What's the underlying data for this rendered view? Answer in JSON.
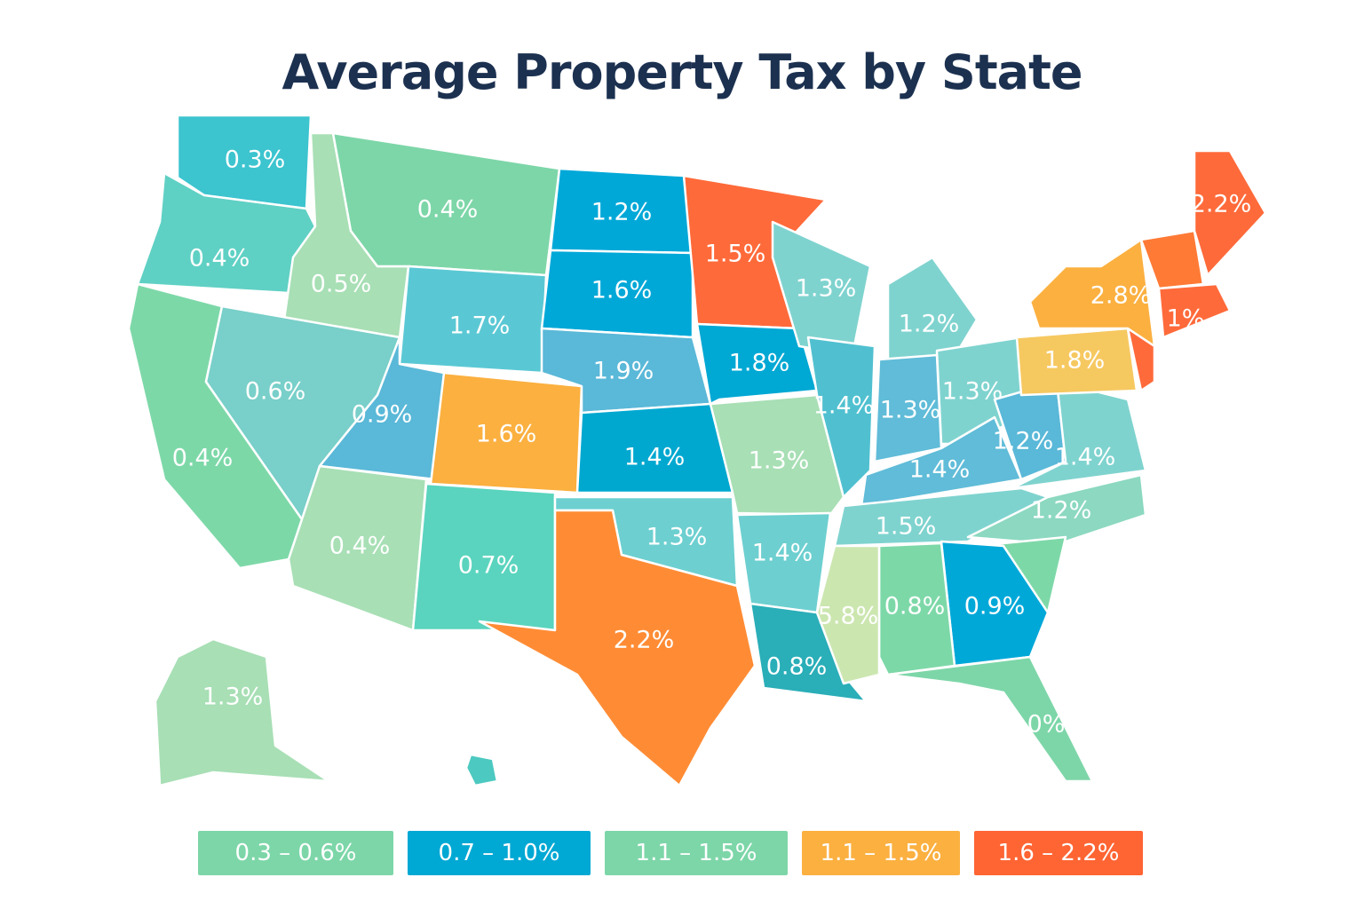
{
  "title": "Average Property Tax by State",
  "states": [
    {
      "label": "0.3%",
      "color": "#3cc4cf"
    },
    {
      "label": "0.4%",
      "color": "#5fd0c4"
    },
    {
      "label": "0.4%",
      "color": "#7dd8a8"
    },
    {
      "label": "0.5%",
      "color": "#a8dfb5"
    },
    {
      "label": "0.6%",
      "color": "#79cfc9"
    },
    {
      "label": "0.4%",
      "color": "#7dd6a8"
    },
    {
      "label": "1.7%",
      "color": "#5ac8d4"
    },
    {
      "label": "0.9%",
      "color": "#5ab8d8"
    },
    {
      "label": "0.4%",
      "color": "#a8dfb5"
    },
    {
      "label": "1.6%",
      "color": "#fbb040"
    },
    {
      "label": "0.7%",
      "color": "#5ad4be"
    },
    {
      "label": "1.2%",
      "color": "#00a8d8"
    },
    {
      "label": "1.6%",
      "color": "#00a8d8"
    },
    {
      "label": "1.9%",
      "color": "#5ab8d8"
    },
    {
      "label": "1.4%",
      "color": "#00a8d0"
    },
    {
      "label": "1.3%",
      "color": "#6dcfd0"
    },
    {
      "label": "2.2%",
      "color": "#ff8c35"
    },
    {
      "label": "1.5%",
      "color": "#ff6a3a"
    },
    {
      "label": "1.8%",
      "color": "#00a8d4"
    },
    {
      "label": "1.3%",
      "color": "#a8dfb5"
    },
    {
      "label": "1.4%",
      "color": "#6dcfd0"
    },
    {
      "label": "0.8%",
      "color": "#2aaeb8"
    },
    {
      "label": "1.3%",
      "color": "#7fd3cf"
    },
    {
      "label": "1.2%",
      "color": "#7fd3cf"
    },
    {
      "label": "1.4%",
      "color": "#50c0d0"
    },
    {
      "label": "1.3%",
      "color": "#60bcd8"
    },
    {
      "label": "1.3%",
      "color": "#7fd3cf"
    },
    {
      "label": "1.4%",
      "color": "#60bcd8"
    },
    {
      "label": "1.2%",
      "color": "#5ab8d8"
    },
    {
      "label": "1.4%",
      "color": "#7fd3cf"
    },
    {
      "label": "1.5%",
      "color": "#7fd3cf"
    },
    {
      "label": "1.2%",
      "color": "#8cd8c0"
    },
    {
      "label": "",
      "color": "#7dd8a8"
    },
    {
      "label": "0.9%",
      "color": "#00a8d8"
    },
    {
      "label": "0.8%",
      "color": "#7dd8a8"
    },
    {
      "label": "5.8%",
      "color": "#cce6b0"
    },
    {
      "label": "0%",
      "color": "#7dd6a8"
    },
    {
      "label": "1.8%",
      "color": "#f6c860"
    },
    {
      "label": "2.8%",
      "color": "#fbb040"
    },
    {
      "label": "",
      "color": "#ff6a3a"
    },
    {
      "label": "",
      "color": "#ff7a35"
    },
    {
      "label": "2.2%",
      "color": "#ff6a3a"
    },
    {
      "label": "1%",
      "color": "#ff6a3a"
    },
    {
      "label": "1.3%",
      "color": "#a8dfb5"
    },
    {
      "label": "",
      "color": "#4cc9c0"
    }
  ],
  "legend": [
    {
      "label": "0.3 – 0.6%",
      "color": "#7dd6a8"
    },
    {
      "label": "0.7 – 1.0%",
      "color": "#00a8d4"
    },
    {
      "label": "1.1 – 1.5%",
      "color": "#7dd6a8"
    },
    {
      "label": "1.1 – 1.5%",
      "color": "#fbb040"
    },
    {
      "label": "1.6 – 2.2%",
      "color": "#ff6433"
    }
  ]
}
